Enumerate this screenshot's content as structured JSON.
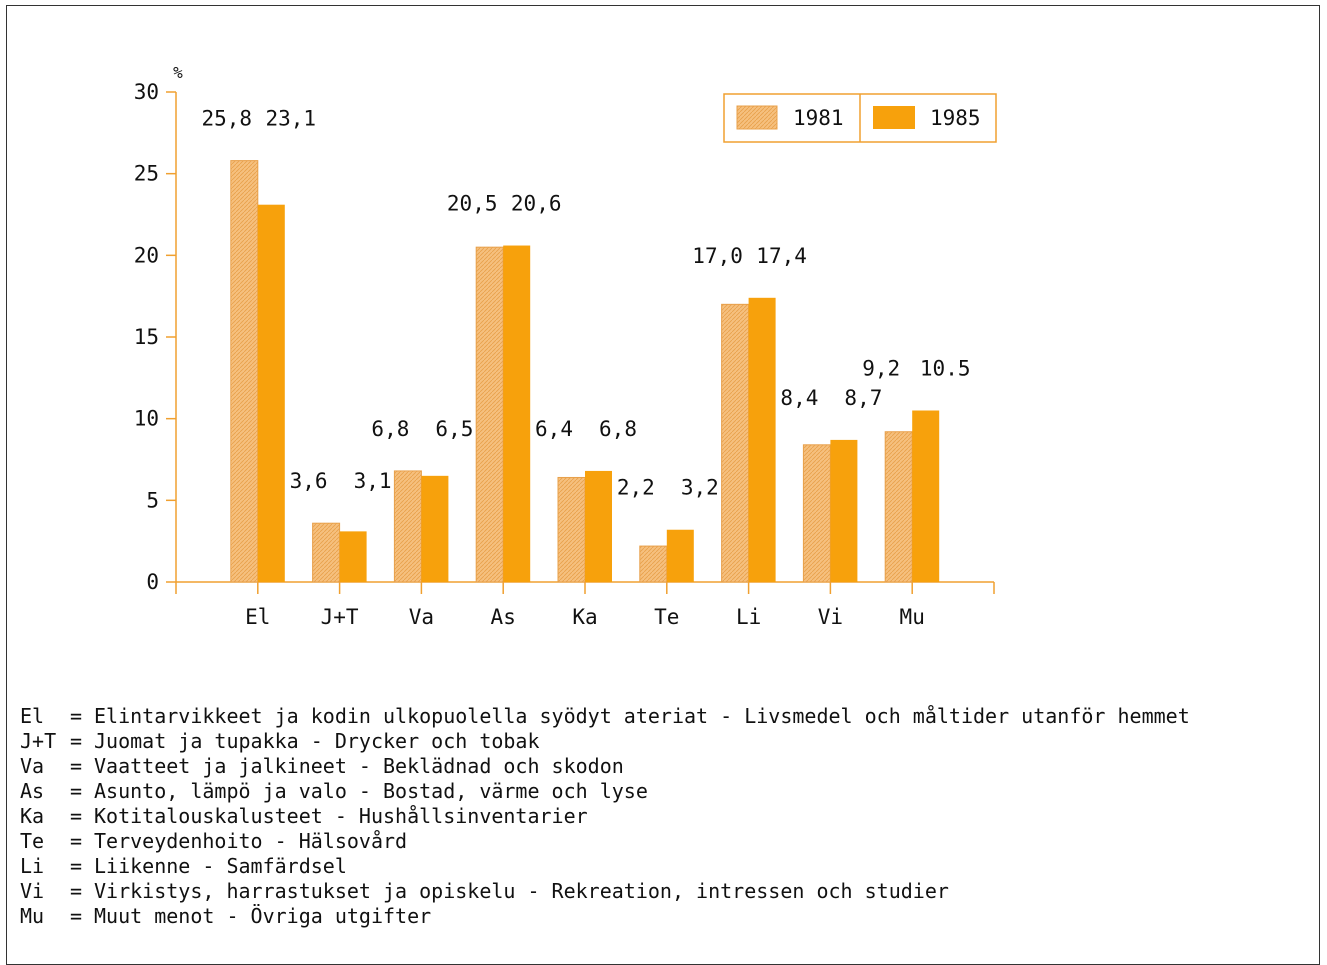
{
  "colors": {
    "series_1981": "#F6C07E",
    "series_1985": "#F7A10C",
    "axis": "#F0A030"
  },
  "chart_data": {
    "type": "bar",
    "title": "",
    "xlabel": "",
    "ylabel": "%",
    "ylim": [
      0,
      30
    ],
    "yticks": [
      "0",
      "5",
      "10",
      "15",
      "20",
      "25",
      "30"
    ],
    "categories": [
      "El",
      "J+T",
      "Va",
      "As",
      "Ka",
      "Te",
      "Li",
      "Vi",
      "Mu"
    ],
    "series": [
      {
        "name": "1981",
        "values": [
          25.8,
          3.6,
          6.8,
          20.5,
          6.4,
          2.2,
          17.0,
          8.4,
          9.2
        ],
        "labels": [
          "25,8",
          "3,6",
          "6,8",
          "20,5",
          "6,4",
          "2,2",
          "17,0",
          "8,4",
          "9,2"
        ]
      },
      {
        "name": "1985",
        "values": [
          23.1,
          3.1,
          6.5,
          20.6,
          6.8,
          3.2,
          17.4,
          8.7,
          10.5
        ],
        "labels": [
          "23,1",
          "3,1",
          "6,5",
          "20,6",
          "6,8",
          "3,2",
          "17,4",
          "8,7",
          "10.5"
        ]
      }
    ],
    "legend_position": "top-right",
    "grid": false
  },
  "key": [
    {
      "abbr": "El",
      "text": "Elintarvikkeet ja kodin ulkopuolella syödyt ateriat - Livsmedel och måltider utanför hemmet"
    },
    {
      "abbr": "J+T",
      "text": "Juomat ja tupakka - Drycker och tobak"
    },
    {
      "abbr": "Va",
      "text": "Vaatteet ja jalkineet - Beklädnad och skodon"
    },
    {
      "abbr": "As",
      "text": "Asunto, lämpö ja valo - Bostad, värme och lyse"
    },
    {
      "abbr": "Ka",
      "text": "Kotitalouskalusteet - Hushållsinventarier"
    },
    {
      "abbr": "Te",
      "text": "Terveydenhoito - Hälsovård"
    },
    {
      "abbr": "Li",
      "text": "Liikenne - Samfärdsel"
    },
    {
      "abbr": "Vi",
      "text": "Virkistys, harrastukset ja opiskelu - Rekreation, intressen och studier"
    },
    {
      "abbr": "Mu",
      "text": "Muut menot - Övriga utgifter"
    }
  ]
}
